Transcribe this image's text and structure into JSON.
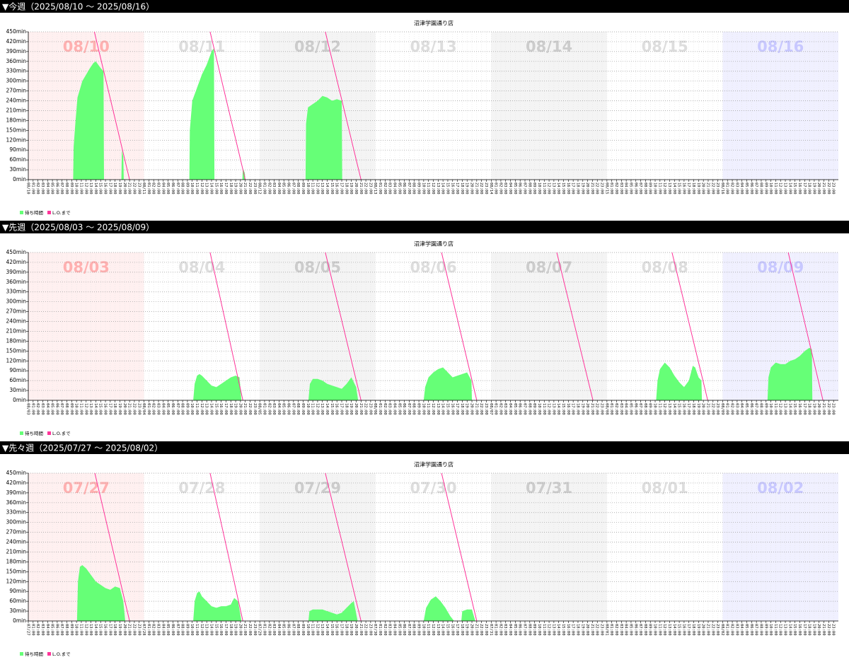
{
  "chart_data": [
    {
      "type": "area",
      "heading": "▼今週（2025/08/10 ～ 2025/08/16）",
      "title": "沼津学園通り店",
      "days": [
        {
          "label": "08/10",
          "color": "#ffb0b0",
          "background": "#fff0f0"
        },
        {
          "label": "08/11",
          "color": "#dddddd",
          "background": "#ffffff"
        },
        {
          "label": "08/12",
          "color": "#cccccc",
          "background": "#f4f4f4"
        },
        {
          "label": "08/13",
          "color": "#dddddd",
          "background": "#ffffff"
        },
        {
          "label": "08/14",
          "color": "#cccccc",
          "background": "#f4f4f4"
        },
        {
          "label": "08/15",
          "color": "#dddddd",
          "background": "#ffffff"
        },
        {
          "label": "08/16",
          "color": "#c8c8ff",
          "background": "#f0f0ff"
        }
      ],
      "hour_labels": [
        "01:00",
        "02:00",
        "03:00",
        "04:00",
        "05:00",
        "06:00",
        "07:00",
        "08:00",
        "09:00",
        "10:00",
        "11:00",
        "12:00",
        "13:00",
        "14:00",
        "15:00",
        "16:00",
        "17:00",
        "18:00",
        "19:00",
        "20:00",
        "21:00",
        "22:00",
        "23:00"
      ],
      "xlim": [
        0,
        168
      ],
      "ylim": [
        0,
        450
      ],
      "yticks": [
        {
          "value": 0,
          "label": "0min"
        },
        {
          "value": 30,
          "label": "30min"
        },
        {
          "value": 60,
          "label": "60min"
        },
        {
          "value": 90,
          "label": "90min"
        },
        {
          "value": 120,
          "label": "120min"
        },
        {
          "value": 150,
          "label": "150min"
        },
        {
          "value": 180,
          "label": "180min"
        },
        {
          "value": 210,
          "label": "210min"
        },
        {
          "value": 240,
          "label": "240min"
        },
        {
          "value": 270,
          "label": "270min"
        },
        {
          "value": 300,
          "label": "300min"
        },
        {
          "value": 330,
          "label": "330min"
        },
        {
          "value": 360,
          "label": "360min"
        },
        {
          "value": 390,
          "label": "390min"
        },
        {
          "value": 420,
          "label": "420min"
        },
        {
          "value": 450,
          "label": "450min"
        }
      ],
      "grid": true,
      "series": [
        {
          "name": "待ち時間",
          "color": "#66ff77",
          "x": [
            9.3,
            9.4,
            9.8,
            10.2,
            10.8,
            11.2,
            12,
            12.8,
            13.5,
            14,
            14.5,
            15,
            15.6,
            15.7,
            17.5,
            19.3,
            19.4,
            19.7,
            19.8,
            22,
            33.4,
            33.5,
            34,
            35,
            36,
            37,
            38,
            38.5,
            38.6,
            40,
            44.4,
            44.5,
            44.9,
            45,
            50,
            57.5,
            57.6,
            58,
            59,
            60,
            61,
            62,
            63,
            64,
            65,
            65.1
          ],
          "values": [
            0,
            100,
            180,
            250,
            280,
            300,
            320,
            340,
            355,
            360,
            350,
            340,
            330,
            0,
            null,
            0,
            90,
            70,
            0,
            null,
            0,
            150,
            240,
            280,
            320,
            350,
            390,
            400,
            0,
            null,
            0,
            35,
            20,
            0,
            null,
            0,
            170,
            220,
            230,
            240,
            255,
            250,
            240,
            245,
            240,
            0
          ]
        },
        {
          "name": "L.O.まで",
          "color": "#ff3399",
          "type": "line",
          "x": [
            13.7,
            21.0,
            30,
            37.7,
            45.0,
            55,
            61.6,
            69.0
          ],
          "values": [
            450,
            0,
            null,
            450,
            0,
            null,
            450,
            0
          ]
        }
      ]
    },
    {
      "type": "area",
      "heading": "▼先週（2025/08/03 ～ 2025/08/09）",
      "title": "沼津学園通り店",
      "days": [
        {
          "label": "08/03",
          "color": "#ffb0b0",
          "background": "#fff0f0"
        },
        {
          "label": "08/04",
          "color": "#dddddd",
          "background": "#ffffff"
        },
        {
          "label": "08/05",
          "color": "#cccccc",
          "background": "#f4f4f4"
        },
        {
          "label": "08/06",
          "color": "#dddddd",
          "background": "#ffffff"
        },
        {
          "label": "08/07",
          "color": "#cccccc",
          "background": "#f4f4f4"
        },
        {
          "label": "08/08",
          "color": "#dddddd",
          "background": "#ffffff"
        },
        {
          "label": "08/09",
          "color": "#c8c8ff",
          "background": "#f0f0ff"
        }
      ],
      "hour_labels": [
        "01:00",
        "02:00",
        "03:00",
        "04:00",
        "05:00",
        "06:00",
        "07:00",
        "08:00",
        "09:00",
        "10:00",
        "11:00",
        "12:00",
        "13:00",
        "14:00",
        "15:00",
        "16:00",
        "17:00",
        "18:00",
        "19:00",
        "20:00",
        "21:00",
        "22:00",
        "23:00"
      ],
      "xlim": [
        0,
        168
      ],
      "ylim": [
        0,
        450
      ],
      "yticks": [
        {
          "value": 0,
          "label": "0min"
        },
        {
          "value": 30,
          "label": "30min"
        },
        {
          "value": 60,
          "label": "60min"
        },
        {
          "value": 90,
          "label": "90min"
        },
        {
          "value": 120,
          "label": "120min"
        },
        {
          "value": 150,
          "label": "150min"
        },
        {
          "value": 180,
          "label": "180min"
        },
        {
          "value": 210,
          "label": "210min"
        },
        {
          "value": 240,
          "label": "240min"
        },
        {
          "value": 270,
          "label": "270min"
        },
        {
          "value": 300,
          "label": "300min"
        },
        {
          "value": 330,
          "label": "330min"
        },
        {
          "value": 360,
          "label": "360min"
        },
        {
          "value": 390,
          "label": "390min"
        },
        {
          "value": 420,
          "label": "420min"
        },
        {
          "value": 450,
          "label": "450min"
        }
      ],
      "grid": true,
      "series": [
        {
          "name": "待ち時間",
          "color": "#66ff77",
          "x": [
            34.2,
            34.5,
            35,
            35.5,
            36,
            37,
            38,
            39,
            40,
            41,
            42,
            43,
            43.8,
            44.2,
            47,
            58.1,
            58.4,
            59,
            60,
            61,
            62,
            63,
            64,
            65,
            66,
            67,
            68,
            68.4,
            71,
            82,
            82.3,
            83,
            84,
            85,
            86,
            87,
            88,
            89,
            90,
            91,
            91.9,
            92,
            110,
            130.2,
            130.5,
            131,
            132,
            133,
            134,
            135,
            136,
            137,
            137.8,
            138.3,
            139,
            139.6,
            139.7,
            145,
            153.3,
            153.5,
            154,
            155,
            156,
            157,
            158,
            159,
            160,
            161,
            162,
            162.5,
            162.6
          ],
          "values": [
            0,
            50,
            75,
            80,
            75,
            60,
            45,
            40,
            50,
            60,
            70,
            75,
            70,
            0,
            null,
            0,
            50,
            65,
            65,
            60,
            50,
            45,
            40,
            35,
            50,
            70,
            40,
            0,
            null,
            0,
            40,
            70,
            85,
            95,
            100,
            85,
            70,
            75,
            80,
            85,
            60,
            0,
            null,
            0,
            60,
            95,
            115,
            100,
            75,
            55,
            40,
            60,
            105,
            100,
            70,
            60,
            0,
            null,
            0,
            70,
            100,
            115,
            110,
            110,
            120,
            125,
            135,
            150,
            160,
            155,
            0
          ]
        },
        {
          "name": "L.O.まで",
          "color": "#ff3399",
          "type": "line",
          "x": [
            37.7,
            44.5,
            50,
            61.6,
            69.0,
            75,
            85.7,
            93.0,
            100,
            109.6,
            117.1,
            125,
            133.5,
            140.9,
            150,
            157.6,
            164.8
          ],
          "values": [
            450,
            0,
            null,
            450,
            0,
            null,
            450,
            0,
            null,
            450,
            0,
            null,
            450,
            0,
            null,
            450,
            0
          ]
        }
      ]
    },
    {
      "type": "area",
      "heading": "▼先々週（2025/07/27 ～ 2025/08/02）",
      "title": "沼津学園通り店",
      "days": [
        {
          "label": "07/27",
          "color": "#ffb0b0",
          "background": "#fff0f0"
        },
        {
          "label": "07/28",
          "color": "#dddddd",
          "background": "#ffffff"
        },
        {
          "label": "07/29",
          "color": "#cccccc",
          "background": "#f4f4f4"
        },
        {
          "label": "07/30",
          "color": "#dddddd",
          "background": "#ffffff"
        },
        {
          "label": "07/31",
          "color": "#cccccc",
          "background": "#f4f4f4"
        },
        {
          "label": "08/01",
          "color": "#dddddd",
          "background": "#ffffff"
        },
        {
          "label": "08/02",
          "color": "#c8c8ff",
          "background": "#f0f0ff"
        }
      ],
      "hour_labels": [
        "01:00",
        "02:00",
        "03:00",
        "04:00",
        "05:00",
        "06:00",
        "07:00",
        "08:00",
        "09:00",
        "10:00",
        "11:00",
        "12:00",
        "13:00",
        "14:00",
        "15:00",
        "16:00",
        "17:00",
        "18:00",
        "19:00",
        "20:00",
        "21:00",
        "22:00",
        "23:00"
      ],
      "xlim": [
        0,
        168
      ],
      "ylim": [
        0,
        450
      ],
      "yticks": [
        {
          "value": 0,
          "label": "0min"
        },
        {
          "value": 30,
          "label": "30min"
        },
        {
          "value": 60,
          "label": "60min"
        },
        {
          "value": 90,
          "label": "90min"
        },
        {
          "value": 120,
          "label": "120min"
        },
        {
          "value": 150,
          "label": "150min"
        },
        {
          "value": 180,
          "label": "180min"
        },
        {
          "value": 210,
          "label": "210min"
        },
        {
          "value": 240,
          "label": "240min"
        },
        {
          "value": 270,
          "label": "270min"
        },
        {
          "value": 300,
          "label": "300min"
        },
        {
          "value": 330,
          "label": "330min"
        },
        {
          "value": 360,
          "label": "360min"
        },
        {
          "value": 390,
          "label": "390min"
        },
        {
          "value": 420,
          "label": "420min"
        },
        {
          "value": 450,
          "label": "450min"
        }
      ],
      "grid": true,
      "series": [
        {
          "name": "待ち時間",
          "color": "#66ff77",
          "x": [
            10.1,
            10.3,
            10.7,
            11.2,
            12,
            13,
            14,
            15,
            16,
            17,
            18,
            19,
            19.7,
            20.1,
            22,
            34.2,
            34.5,
            35,
            35.5,
            36,
            37,
            38,
            39,
            40,
            41,
            42,
            42.7,
            43.5,
            44.2,
            47,
            58.1,
            58.3,
            59,
            60,
            61,
            62,
            63,
            64,
            65,
            66,
            67,
            67.5,
            68.3,
            71,
            82,
            82.5,
            83.5,
            84.5,
            85.5,
            86.5,
            87.5,
            88.3,
            89,
            89.8,
            90,
            91,
            92,
            92.7
          ],
          "values": [
            0,
            120,
            165,
            170,
            160,
            140,
            120,
            110,
            100,
            95,
            105,
            100,
            60,
            0,
            null,
            0,
            60,
            85,
            90,
            75,
            60,
            45,
            40,
            45,
            45,
            50,
            70,
            60,
            0,
            null,
            0,
            30,
            35,
            35,
            35,
            30,
            25,
            20,
            25,
            40,
            55,
            60,
            0,
            null,
            0,
            40,
            65,
            75,
            60,
            40,
            15,
            0,
            null,
            0,
            30,
            35,
            35,
            0
          ]
        },
        {
          "name": "L.O.まで",
          "color": "#ff3399",
          "type": "line",
          "x": [
            13.8,
            21.0,
            30,
            37.7,
            44.5,
            50,
            61.6,
            69.0,
            75,
            85.7,
            93.0
          ],
          "values": [
            450,
            0,
            null,
            450,
            0,
            null,
            450,
            0,
            null,
            450,
            0
          ]
        }
      ]
    }
  ]
}
